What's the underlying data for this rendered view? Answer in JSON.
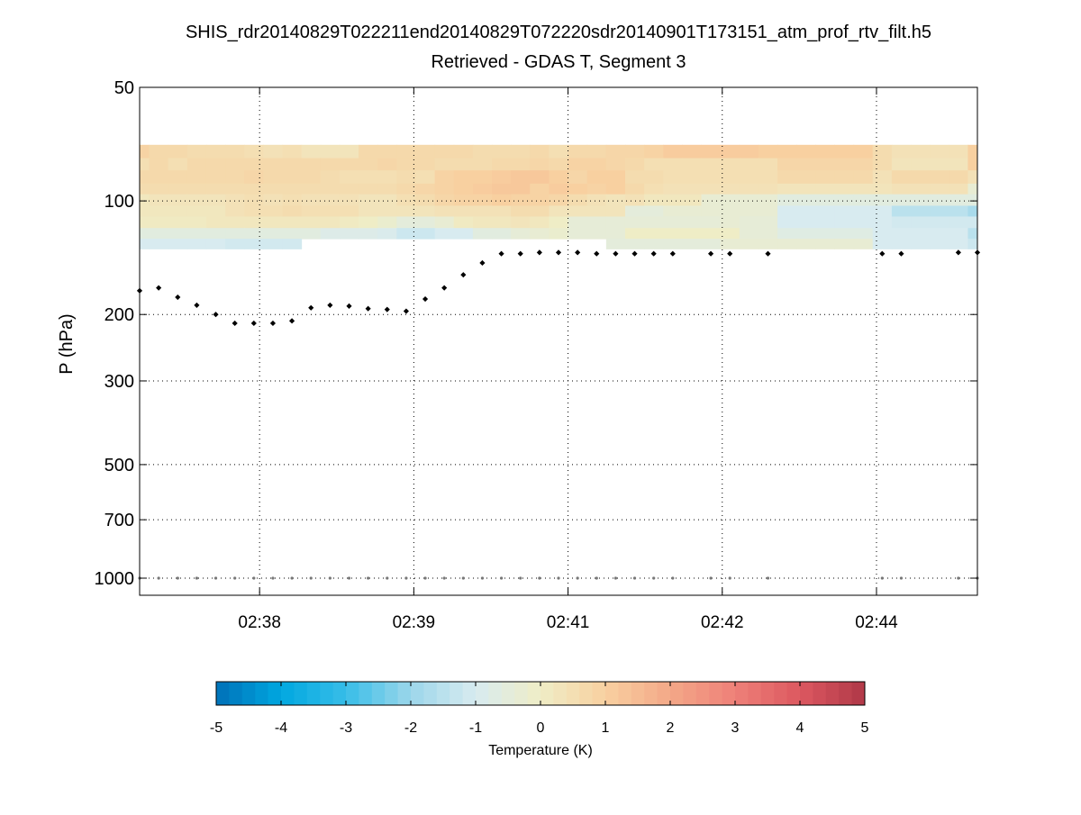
{
  "chart_data": {
    "type": "heatmap",
    "title": "SHIS_rdr20140829T022211end20140829T072220sdr20140901T173151_atm_prof_rtv_filt.h5",
    "subtitle": "Retrieved - GDAS T, Segment 3",
    "xlabel": "",
    "ylabel": "P (hPa)",
    "yscale": "log",
    "ylim": [
      50,
      1110
    ],
    "xlim": [
      0,
      44
    ],
    "grid": true,
    "x_ticks": [
      {
        "pos": 6.3,
        "label": "02:38"
      },
      {
        "pos": 14.4,
        "label": "02:39"
      },
      {
        "pos": 22.5,
        "label": "02:41"
      },
      {
        "pos": 30.6,
        "label": "02:42"
      },
      {
        "pos": 38.7,
        "label": "02:44"
      }
    ],
    "y_ticks": [
      50,
      100,
      200,
      300,
      500,
      700,
      1000
    ],
    "pressure_levels": [
      71,
      77,
      83,
      90,
      96,
      103,
      110,
      118,
      126,
      134
    ],
    "values": [
      [
        0.9,
        0.7,
        0.7,
        0.6,
        0.6,
        0.6,
        0.5,
        0.4,
        0.5,
        0.3,
        0.3,
        0.3,
        0.7,
        0.7,
        0.7,
        0.7,
        0.7,
        0.7,
        0.6,
        0.6,
        0.6,
        0.7,
        0.5,
        0.7,
        0.7,
        0.8,
        0.8,
        0.9,
        1.1,
        1.1,
        1.1,
        1.1,
        1.1,
        1.0,
        1.0,
        1.0,
        1.0,
        1.0,
        1.0,
        0.6,
        0.4,
        0.4,
        0.4,
        0.4,
        1.0
      ],
      [
        0.5,
        0.7,
        0.5,
        0.7,
        0.7,
        0.7,
        0.7,
        0.7,
        0.7,
        0.7,
        0.7,
        0.7,
        0.7,
        0.8,
        0.7,
        0.7,
        0.6,
        0.6,
        0.6,
        0.7,
        0.7,
        0.8,
        0.7,
        0.9,
        0.9,
        0.8,
        0.7,
        0.5,
        0.5,
        0.5,
        0.5,
        0.5,
        0.5,
        0.5,
        0.8,
        0.8,
        0.8,
        0.8,
        0.8,
        0.6,
        0.3,
        0.3,
        0.3,
        0.3,
        1.0
      ],
      [
        0.7,
        0.7,
        0.7,
        0.7,
        0.7,
        0.7,
        0.8,
        0.7,
        0.7,
        0.7,
        0.6,
        0.5,
        0.5,
        0.5,
        0.6,
        0.5,
        0.9,
        1.0,
        1.0,
        1.1,
        1.2,
        1.2,
        1.0,
        0.8,
        1.0,
        1.0,
        0.6,
        0.6,
        0.5,
        0.5,
        0.5,
        0.5,
        0.5,
        0.5,
        0.7,
        0.7,
        0.7,
        0.7,
        0.7,
        0.4,
        0.7,
        0.7,
        0.7,
        0.7,
        0.4
      ],
      [
        0.6,
        0.6,
        0.6,
        0.6,
        0.6,
        0.6,
        0.6,
        0.6,
        0.6,
        0.6,
        0.6,
        0.6,
        0.6,
        0.6,
        0.7,
        0.8,
        0.9,
        1.0,
        1.1,
        1.2,
        1.2,
        0.9,
        1.1,
        1.0,
        0.9,
        1.0,
        0.7,
        0.5,
        0.4,
        0.4,
        0.4,
        0.4,
        0.4,
        0.4,
        0.3,
        0.3,
        0.3,
        0.3,
        0.3,
        0.3,
        0.4,
        0.4,
        0.4,
        0.4,
        -0.3
      ],
      [
        0.2,
        0.3,
        0.3,
        0.3,
        0.3,
        0.4,
        0.5,
        0.4,
        0.5,
        0.4,
        0.4,
        0.4,
        0.3,
        0.3,
        0.5,
        0.6,
        0.8,
        0.9,
        0.9,
        1.0,
        0.9,
        0.9,
        0.8,
        0.6,
        0.4,
        0.3,
        0.4,
        0.2,
        0.2,
        0.2,
        -0.3,
        -0.3,
        -0.3,
        -0.3,
        -0.6,
        -0.6,
        -0.6,
        -0.6,
        -0.6,
        -0.6,
        -0.6,
        -0.6,
        -0.6,
        -0.6,
        -0.6
      ],
      [
        0.2,
        0.2,
        0.2,
        0.2,
        0.2,
        0.4,
        0.5,
        0.5,
        0.6,
        0.5,
        0.5,
        0.5,
        0.3,
        0.3,
        0.3,
        0.3,
        0.4,
        0.4,
        0.4,
        0.4,
        0.6,
        0.6,
        0.3,
        0.3,
        0.3,
        0.3,
        -0.5,
        -0.5,
        -0.3,
        -0.3,
        -0.3,
        -0.3,
        -0.3,
        -0.3,
        -1.0,
        -1.0,
        -1.0,
        -1.0,
        -1.0,
        -1.0,
        -1.5,
        -1.5,
        -1.5,
        -1.5,
        -1.8
      ],
      [
        0.1,
        0.1,
        0.1,
        0.1,
        0.2,
        0.2,
        0.2,
        0.2,
        0.2,
        0.2,
        0.2,
        0.1,
        0.0,
        -0.2,
        -0.5,
        -0.5,
        -0.3,
        0.1,
        0.2,
        0.2,
        0.3,
        0.2,
        0.0,
        -0.4,
        -0.4,
        -0.4,
        -0.4,
        -0.4,
        -0.4,
        -0.4,
        -0.4,
        -0.3,
        -0.4,
        -0.4,
        -1.0,
        -1.0,
        -1.0,
        -1.0,
        -1.0,
        -1.0,
        -1.1,
        -1.1,
        -1.1,
        -1.1,
        -1.1
      ],
      [
        -0.6,
        -0.6,
        -0.6,
        -0.6,
        -0.6,
        -0.6,
        -0.6,
        -0.6,
        -0.6,
        -0.6,
        -0.8,
        -0.8,
        -0.8,
        -0.9,
        -1.2,
        -1.2,
        -1.0,
        -1.0,
        -0.6,
        -0.6,
        -0.4,
        -0.3,
        -0.2,
        -0.4,
        -0.4,
        -0.4,
        0.0,
        0.0,
        0.0,
        0.0,
        0.0,
        0.0,
        -0.4,
        -0.4,
        -0.7,
        -0.7,
        -0.7,
        -0.7,
        -0.7,
        -1.0,
        -1.0,
        -1.0,
        -1.0,
        -1.0,
        -1.5
      ],
      [
        -1.0,
        -1.0,
        -1.0,
        -1.0,
        -1.0,
        -1.1,
        -1.1,
        -1.1,
        -1.1,
        null,
        null,
        null,
        null,
        null,
        null,
        null,
        null,
        null,
        null,
        null,
        null,
        null,
        null,
        null,
        null,
        -0.5,
        -0.5,
        -0.5,
        -0.5,
        -0.5,
        -0.5,
        -0.3,
        -0.3,
        -0.3,
        -0.3,
        -0.3,
        -0.3,
        -0.3,
        -0.3,
        -1.0,
        -1.0,
        -1.0,
        -1.0,
        -1.0,
        -1.2
      ]
    ],
    "tropopause": {
      "x": [
        0,
        1,
        2,
        3,
        4,
        5,
        6,
        7,
        8,
        9,
        10,
        11,
        12,
        13,
        14,
        15,
        16,
        17,
        18,
        19,
        20,
        21,
        22,
        23,
        24,
        25,
        26,
        27,
        28,
        30,
        31,
        33,
        39,
        40,
        43,
        44
      ],
      "p": [
        173,
        170,
        180,
        189,
        200,
        211,
        211,
        211,
        208,
        192,
        189,
        190,
        193,
        194,
        196,
        182,
        170,
        157,
        146,
        138,
        138,
        137,
        137,
        137,
        138,
        138,
        138,
        138,
        138,
        138,
        138,
        138,
        138,
        138,
        137,
        137
      ]
    },
    "surface": {
      "p": 1000,
      "x": [
        0,
        1,
        2,
        3,
        4,
        5,
        6,
        7,
        8,
        9,
        10,
        11,
        12,
        13,
        14,
        15,
        16,
        17,
        18,
        19,
        20,
        21,
        22,
        23,
        24,
        25,
        26,
        27,
        28,
        30,
        31,
        33,
        39,
        40,
        43,
        44
      ]
    },
    "colorbar": {
      "label": "Temperature (K)",
      "range": [
        -5,
        5
      ],
      "ticks": [
        "-5",
        "-4",
        "-3",
        "-2",
        "-1",
        "0",
        "1",
        "2",
        "3",
        "4",
        "5"
      ],
      "placement": "bottom",
      "colors": [
        "#0070b8",
        "#00a8e0",
        "#38bde8",
        "#9cd6ea",
        "#d8ebf0",
        "#efedc6",
        "#f8d0a0",
        "#f4a888",
        "#ee8078",
        "#dc5860",
        "#b03848"
      ]
    }
  }
}
